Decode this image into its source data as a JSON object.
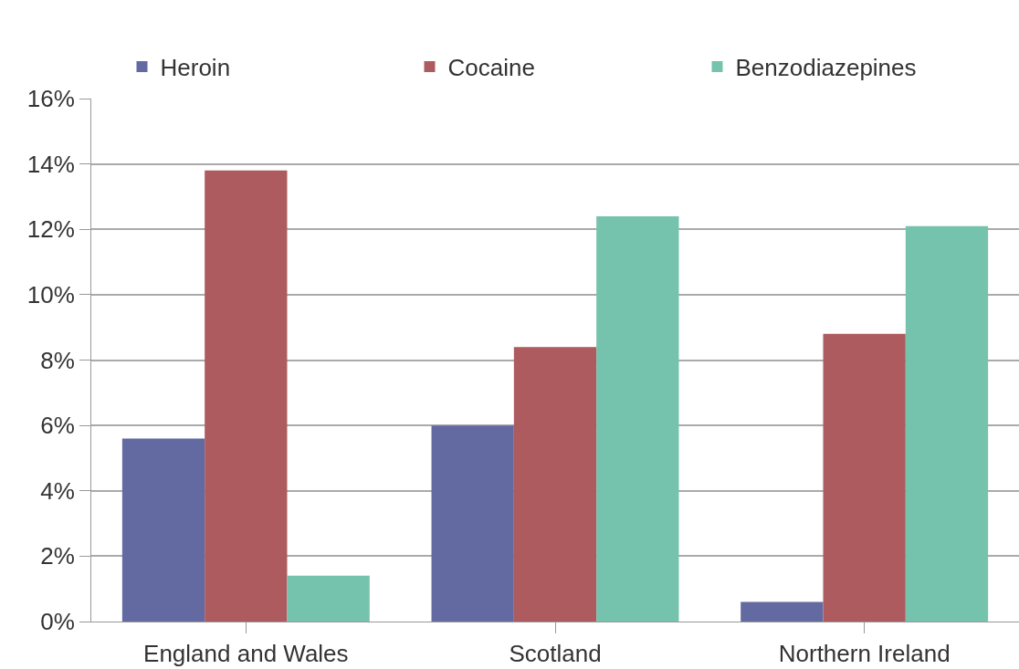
{
  "chart_data": {
    "type": "bar",
    "categories": [
      "England and Wales",
      "Scotland",
      "Northern Ireland"
    ],
    "series": [
      {
        "name": "Heroin",
        "color": "#636aa1",
        "values": [
          5.6,
          6.0,
          0.6
        ]
      },
      {
        "name": "Cocaine",
        "color": "#ad5b5e",
        "values": [
          13.8,
          8.4,
          8.8
        ]
      },
      {
        "name": "Benzodiazepines",
        "color": "#76c3ad",
        "values": [
          1.4,
          12.4,
          12.1
        ]
      }
    ],
    "ylim": [
      0,
      16
    ],
    "yticks": [
      {
        "value": 0,
        "label": "0%"
      },
      {
        "value": 2,
        "label": "2%"
      },
      {
        "value": 4,
        "label": "4%"
      },
      {
        "value": 6,
        "label": "6%"
      },
      {
        "value": 8,
        "label": "8%"
      },
      {
        "value": 10,
        "label": "10%"
      },
      {
        "value": 12,
        "label": "12%"
      },
      {
        "value": 14,
        "label": "14%"
      },
      {
        "value": 16,
        "label": "16%"
      }
    ],
    "grid": "y",
    "legend": "top"
  }
}
